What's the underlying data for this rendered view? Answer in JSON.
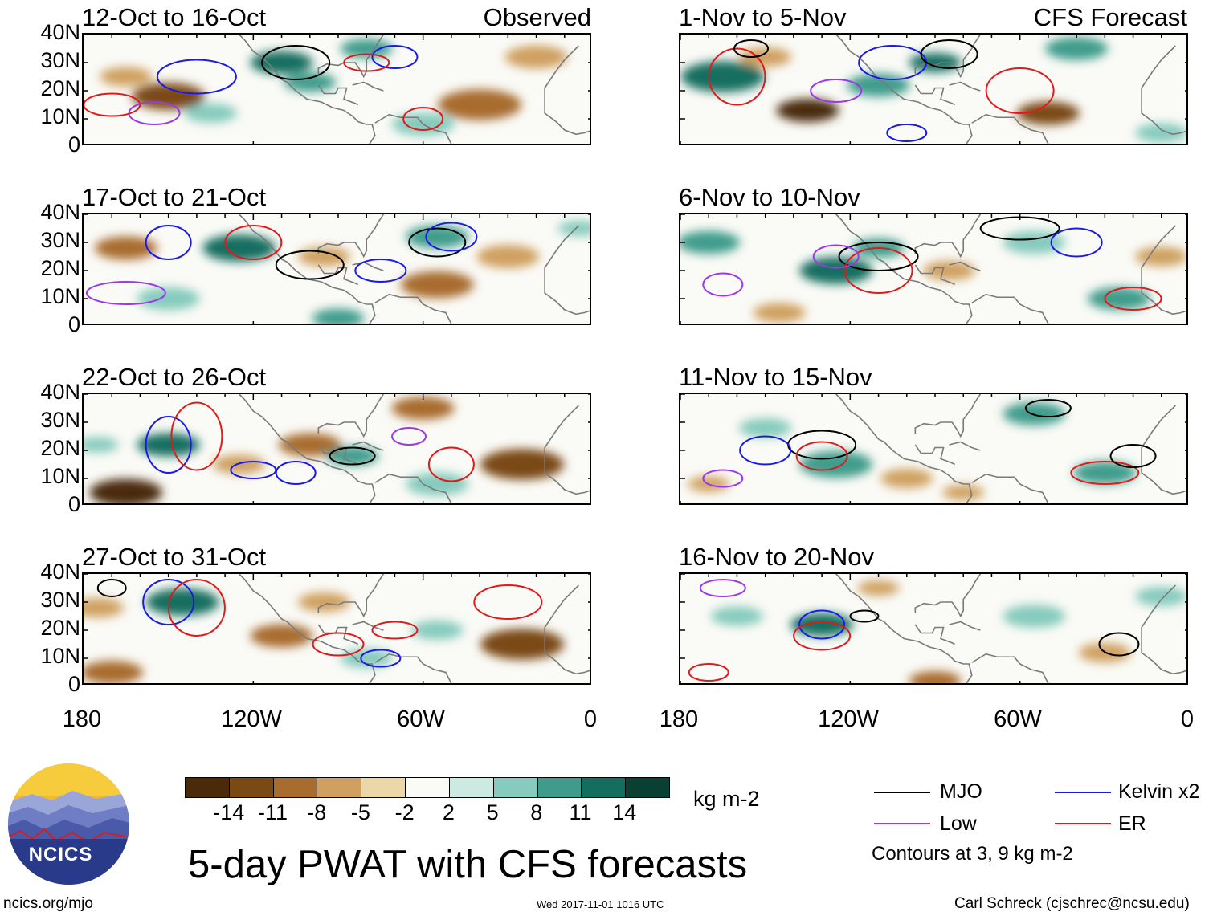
{
  "column_tags": {
    "left": "Observed",
    "right": "CFS Forecast"
  },
  "panels_left": [
    {
      "title": "12-Oct to 16-Oct"
    },
    {
      "title": "17-Oct to 21-Oct"
    },
    {
      "title": "22-Oct to 26-Oct"
    },
    {
      "title": "27-Oct to 31-Oct"
    }
  ],
  "panels_right": [
    {
      "title": "1-Nov to 5-Nov"
    },
    {
      "title": "6-Nov to 10-Nov"
    },
    {
      "title": "11-Nov to 15-Nov"
    },
    {
      "title": "16-Nov to 20-Nov"
    }
  ],
  "lat_labels": [
    "40N",
    "30N",
    "20N",
    "10N",
    "0"
  ],
  "lon_labels": [
    "180",
    "120W",
    "60W",
    "0"
  ],
  "colorbar": {
    "ticks": [
      "-14",
      "-11",
      "-8",
      "-5",
      "-2",
      "2",
      "5",
      "8",
      "11",
      "14"
    ],
    "colors": [
      "#4a2a08",
      "#7a4a14",
      "#a86c2e",
      "#cfa060",
      "#ecd7a8",
      "#fafaf6",
      "#cdeae2",
      "#86cbbd",
      "#3f9c8c",
      "#146e60",
      "#0a3f34"
    ],
    "units": "kg m-2"
  },
  "title": "5-day PWAT with CFS forecasts",
  "legend": {
    "mjo": {
      "label": "MJO",
      "color": "#000000"
    },
    "kelvin": {
      "label": "Kelvin x2",
      "color": "#1a1ae6"
    },
    "low": {
      "label": "Low",
      "color": "#9a3ae6"
    },
    "er": {
      "label": "ER",
      "color": "#e01a1a"
    },
    "note": "Contours at 3, 9 kg m-2"
  },
  "logo": {
    "text": "NCICS"
  },
  "footer": {
    "left": "ncics.org/mjo",
    "center": "Wed 2017-11-01 1016 UTC",
    "right": "Carl Schreck (cjschrec@ncsu.edu)"
  },
  "map_fields": [
    {
      "blobs": [
        [
          -150,
          18,
          7,
          "#7a4a14"
        ],
        [
          -110,
          30,
          6,
          "#146e60"
        ],
        [
          -100,
          23,
          5,
          "#3f9c8c"
        ],
        [
          -40,
          15,
          8,
          "#a86c2e"
        ],
        [
          -165,
          25,
          5,
          "#cfa060"
        ],
        [
          -60,
          8,
          6,
          "#86cbbd"
        ],
        [
          -135,
          12,
          5,
          "#86cbbd"
        ],
        [
          -20,
          32,
          6,
          "#cfa060"
        ],
        [
          -80,
          35,
          5,
          "#3f9c8c"
        ]
      ]
    },
    {
      "blobs": [
        [
          -165,
          28,
          6,
          "#a86c2e"
        ],
        [
          -125,
          28,
          7,
          "#146e60"
        ],
        [
          -95,
          25,
          5,
          "#cfa060"
        ],
        [
          -55,
          32,
          6,
          "#3f9c8c"
        ],
        [
          -55,
          15,
          7,
          "#a86c2e"
        ],
        [
          -150,
          10,
          6,
          "#86cbbd"
        ],
        [
          -90,
          3,
          5,
          "#3f9c8c"
        ],
        [
          -30,
          25,
          6,
          "#cfa060"
        ],
        [
          -5,
          35,
          4,
          "#86cbbd"
        ]
      ]
    },
    {
      "blobs": [
        [
          -165,
          5,
          7,
          "#4a2a08"
        ],
        [
          -150,
          22,
          6,
          "#146e60"
        ],
        [
          -100,
          22,
          6,
          "#a86c2e"
        ],
        [
          -85,
          18,
          5,
          "#3f9c8c"
        ],
        [
          -60,
          35,
          6,
          "#a86c2e"
        ],
        [
          -25,
          15,
          8,
          "#7a4a14"
        ],
        [
          -55,
          8,
          6,
          "#86cbbd"
        ],
        [
          -125,
          15,
          5,
          "#cfa060"
        ],
        [
          -175,
          22,
          4,
          "#86cbbd"
        ]
      ]
    },
    {
      "blobs": [
        [
          -145,
          30,
          7,
          "#146e60"
        ],
        [
          -170,
          5,
          6,
          "#a86c2e"
        ],
        [
          -110,
          18,
          6,
          "#a86c2e"
        ],
        [
          -25,
          15,
          8,
          "#7a4a14"
        ],
        [
          -80,
          10,
          5,
          "#86cbbd"
        ],
        [
          -55,
          20,
          5,
          "#86cbbd"
        ],
        [
          -95,
          30,
          5,
          "#cfa060"
        ],
        [
          -175,
          28,
          5,
          "#cfa060"
        ]
      ]
    },
    {
      "blobs": [
        [
          -165,
          25,
          8,
          "#146e60"
        ],
        [
          -135,
          13,
          6,
          "#4a2a08"
        ],
        [
          -110,
          22,
          6,
          "#3f9c8c"
        ],
        [
          -50,
          12,
          6,
          "#7a4a14"
        ],
        [
          -90,
          30,
          5,
          "#146e60"
        ],
        [
          -40,
          35,
          6,
          "#3f9c8c"
        ],
        [
          -150,
          32,
          5,
          "#cfa060"
        ],
        [
          -10,
          5,
          5,
          "#86cbbd"
        ]
      ]
    },
    {
      "blobs": [
        [
          -170,
          30,
          6,
          "#3f9c8c"
        ],
        [
          -125,
          20,
          7,
          "#146e60"
        ],
        [
          -110,
          28,
          5,
          "#3f9c8c"
        ],
        [
          -55,
          30,
          6,
          "#86cbbd"
        ],
        [
          -25,
          10,
          6,
          "#3f9c8c"
        ],
        [
          -85,
          20,
          5,
          "#cfa060"
        ],
        [
          -145,
          5,
          5,
          "#cfa060"
        ],
        [
          -10,
          25,
          5,
          "#cfa060"
        ]
      ]
    },
    {
      "blobs": [
        [
          -125,
          15,
          7,
          "#3f9c8c"
        ],
        [
          -55,
          33,
          6,
          "#3f9c8c"
        ],
        [
          -30,
          12,
          6,
          "#3f9c8c"
        ],
        [
          -150,
          28,
          5,
          "#86cbbd"
        ],
        [
          -100,
          10,
          5,
          "#cfa060"
        ],
        [
          -80,
          5,
          4,
          "#cfa060"
        ],
        [
          -170,
          8,
          4,
          "#cfa060"
        ]
      ]
    },
    {
      "blobs": [
        [
          -130,
          22,
          6,
          "#146e60"
        ],
        [
          -90,
          2,
          5,
          "#a86c2e"
        ],
        [
          -55,
          25,
          6,
          "#86cbbd"
        ],
        [
          -30,
          12,
          5,
          "#cfa060"
        ],
        [
          -160,
          25,
          5,
          "#86cbbd"
        ],
        [
          -10,
          32,
          5,
          "#86cbbd"
        ],
        [
          -110,
          35,
          4,
          "#cfa060"
        ]
      ]
    }
  ],
  "map_contours": [
    [
      [
        -170,
        15,
        10,
        4,
        "er"
      ],
      [
        -155,
        12,
        9,
        4,
        "low"
      ],
      [
        -105,
        30,
        12,
        6,
        "mjo"
      ],
      [
        -140,
        25,
        14,
        6,
        "kelvin"
      ],
      [
        -70,
        32,
        8,
        4,
        "kelvin"
      ],
      [
        -80,
        30,
        8,
        3,
        "er"
      ],
      [
        -60,
        10,
        7,
        4,
        "er"
      ]
    ],
    [
      [
        -165,
        12,
        14,
        4,
        "low"
      ],
      [
        -120,
        30,
        10,
        6,
        "er"
      ],
      [
        -100,
        22,
        12,
        5,
        "mjo"
      ],
      [
        -55,
        30,
        10,
        5,
        "mjo"
      ],
      [
        -50,
        32,
        9,
        5,
        "kelvin"
      ],
      [
        -75,
        20,
        9,
        4,
        "kelvin"
      ],
      [
        -150,
        30,
        8,
        6,
        "kelvin"
      ]
    ],
    [
      [
        -150,
        22,
        8,
        10,
        "kelvin"
      ],
      [
        -140,
        25,
        9,
        12,
        "er"
      ],
      [
        -85,
        18,
        8,
        3,
        "mjo"
      ],
      [
        -105,
        12,
        7,
        4,
        "kelvin"
      ],
      [
        -50,
        15,
        8,
        6,
        "er"
      ],
      [
        -120,
        13,
        8,
        3,
        "kelvin"
      ],
      [
        -65,
        25,
        6,
        3,
        "low"
      ]
    ],
    [
      [
        -150,
        30,
        9,
        8,
        "kelvin"
      ],
      [
        -140,
        28,
        10,
        10,
        "er"
      ],
      [
        -90,
        15,
        9,
        4,
        "er"
      ],
      [
        -70,
        20,
        8,
        3,
        "er"
      ],
      [
        -30,
        30,
        12,
        6,
        "er"
      ],
      [
        -170,
        35,
        5,
        3,
        "mjo"
      ],
      [
        -75,
        10,
        7,
        3,
        "kelvin"
      ]
    ],
    [
      [
        -160,
        25,
        10,
        10,
        "er"
      ],
      [
        -125,
        20,
        9,
        4,
        "low"
      ],
      [
        -105,
        30,
        12,
        6,
        "kelvin"
      ],
      [
        -85,
        33,
        10,
        5,
        "mjo"
      ],
      [
        -60,
        20,
        12,
        8,
        "er"
      ],
      [
        -100,
        5,
        7,
        3,
        "kelvin"
      ],
      [
        -155,
        35,
        6,
        3,
        "mjo"
      ]
    ],
    [
      [
        -110,
        25,
        14,
        5,
        "mjo"
      ],
      [
        -110,
        20,
        12,
        8,
        "er"
      ],
      [
        -125,
        25,
        8,
        4,
        "low"
      ],
      [
        -165,
        15,
        7,
        4,
        "low"
      ],
      [
        -20,
        10,
        10,
        4,
        "er"
      ],
      [
        -60,
        35,
        14,
        4,
        "mjo"
      ],
      [
        -40,
        30,
        9,
        5,
        "kelvin"
      ]
    ],
    [
      [
        -130,
        22,
        12,
        5,
        "mjo"
      ],
      [
        -130,
        18,
        9,
        5,
        "er"
      ],
      [
        -165,
        10,
        7,
        3,
        "low"
      ],
      [
        -150,
        20,
        9,
        5,
        "kelvin"
      ],
      [
        -30,
        12,
        12,
        4,
        "er"
      ],
      [
        -50,
        35,
        8,
        3,
        "mjo"
      ],
      [
        -20,
        18,
        8,
        4,
        "mjo"
      ]
    ],
    [
      [
        -130,
        22,
        8,
        5,
        "kelvin"
      ],
      [
        -130,
        18,
        10,
        5,
        "er"
      ],
      [
        -170,
        5,
        7,
        3,
        "er"
      ],
      [
        -115,
        25,
        5,
        2,
        "mjo"
      ],
      [
        -25,
        15,
        7,
        4,
        "mjo"
      ],
      [
        -165,
        35,
        8,
        3,
        "low"
      ]
    ]
  ]
}
